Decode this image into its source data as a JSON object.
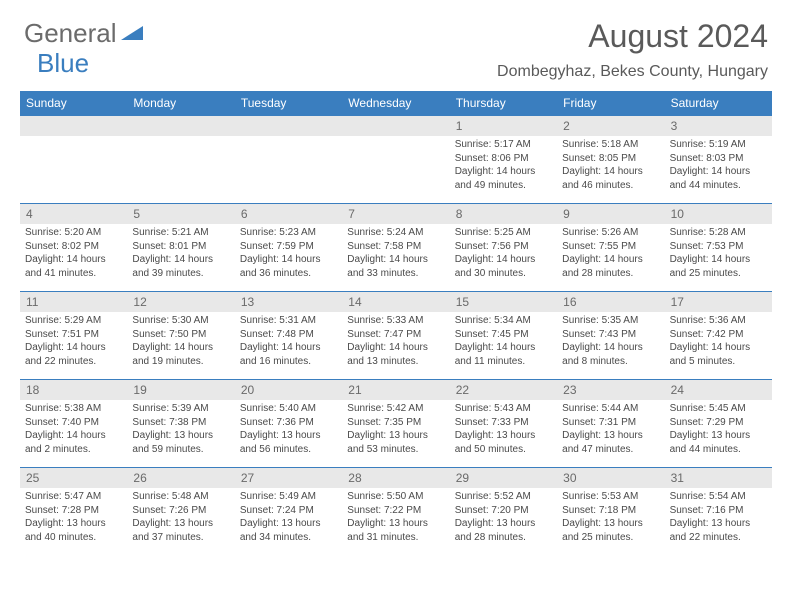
{
  "logo_text_1": "General",
  "logo_text_2": "Blue",
  "month_title": "August 2024",
  "location": "Dombegyhaz, Bekes County, Hungary",
  "colors": {
    "header_bg": "#3a7ebf",
    "daynum_bg": "#e8e8e8",
    "text": "#5a5a5a",
    "border": "#3a7ebf"
  },
  "weekdays": [
    "Sunday",
    "Monday",
    "Tuesday",
    "Wednesday",
    "Thursday",
    "Friday",
    "Saturday"
  ],
  "weeks": [
    [
      null,
      null,
      null,
      null,
      {
        "n": "1",
        "sr": "5:17 AM",
        "ss": "8:06 PM",
        "dl": "14 hours and 49 minutes."
      },
      {
        "n": "2",
        "sr": "5:18 AM",
        "ss": "8:05 PM",
        "dl": "14 hours and 46 minutes."
      },
      {
        "n": "3",
        "sr": "5:19 AM",
        "ss": "8:03 PM",
        "dl": "14 hours and 44 minutes."
      }
    ],
    [
      {
        "n": "4",
        "sr": "5:20 AM",
        "ss": "8:02 PM",
        "dl": "14 hours and 41 minutes."
      },
      {
        "n": "5",
        "sr": "5:21 AM",
        "ss": "8:01 PM",
        "dl": "14 hours and 39 minutes."
      },
      {
        "n": "6",
        "sr": "5:23 AM",
        "ss": "7:59 PM",
        "dl": "14 hours and 36 minutes."
      },
      {
        "n": "7",
        "sr": "5:24 AM",
        "ss": "7:58 PM",
        "dl": "14 hours and 33 minutes."
      },
      {
        "n": "8",
        "sr": "5:25 AM",
        "ss": "7:56 PM",
        "dl": "14 hours and 30 minutes."
      },
      {
        "n": "9",
        "sr": "5:26 AM",
        "ss": "7:55 PM",
        "dl": "14 hours and 28 minutes."
      },
      {
        "n": "10",
        "sr": "5:28 AM",
        "ss": "7:53 PM",
        "dl": "14 hours and 25 minutes."
      }
    ],
    [
      {
        "n": "11",
        "sr": "5:29 AM",
        "ss": "7:51 PM",
        "dl": "14 hours and 22 minutes."
      },
      {
        "n": "12",
        "sr": "5:30 AM",
        "ss": "7:50 PM",
        "dl": "14 hours and 19 minutes."
      },
      {
        "n": "13",
        "sr": "5:31 AM",
        "ss": "7:48 PM",
        "dl": "14 hours and 16 minutes."
      },
      {
        "n": "14",
        "sr": "5:33 AM",
        "ss": "7:47 PM",
        "dl": "14 hours and 13 minutes."
      },
      {
        "n": "15",
        "sr": "5:34 AM",
        "ss": "7:45 PM",
        "dl": "14 hours and 11 minutes."
      },
      {
        "n": "16",
        "sr": "5:35 AM",
        "ss": "7:43 PM",
        "dl": "14 hours and 8 minutes."
      },
      {
        "n": "17",
        "sr": "5:36 AM",
        "ss": "7:42 PM",
        "dl": "14 hours and 5 minutes."
      }
    ],
    [
      {
        "n": "18",
        "sr": "5:38 AM",
        "ss": "7:40 PM",
        "dl": "14 hours and 2 minutes."
      },
      {
        "n": "19",
        "sr": "5:39 AM",
        "ss": "7:38 PM",
        "dl": "13 hours and 59 minutes."
      },
      {
        "n": "20",
        "sr": "5:40 AM",
        "ss": "7:36 PM",
        "dl": "13 hours and 56 minutes."
      },
      {
        "n": "21",
        "sr": "5:42 AM",
        "ss": "7:35 PM",
        "dl": "13 hours and 53 minutes."
      },
      {
        "n": "22",
        "sr": "5:43 AM",
        "ss": "7:33 PM",
        "dl": "13 hours and 50 minutes."
      },
      {
        "n": "23",
        "sr": "5:44 AM",
        "ss": "7:31 PM",
        "dl": "13 hours and 47 minutes."
      },
      {
        "n": "24",
        "sr": "5:45 AM",
        "ss": "7:29 PM",
        "dl": "13 hours and 44 minutes."
      }
    ],
    [
      {
        "n": "25",
        "sr": "5:47 AM",
        "ss": "7:28 PM",
        "dl": "13 hours and 40 minutes."
      },
      {
        "n": "26",
        "sr": "5:48 AM",
        "ss": "7:26 PM",
        "dl": "13 hours and 37 minutes."
      },
      {
        "n": "27",
        "sr": "5:49 AM",
        "ss": "7:24 PM",
        "dl": "13 hours and 34 minutes."
      },
      {
        "n": "28",
        "sr": "5:50 AM",
        "ss": "7:22 PM",
        "dl": "13 hours and 31 minutes."
      },
      {
        "n": "29",
        "sr": "5:52 AM",
        "ss": "7:20 PM",
        "dl": "13 hours and 28 minutes."
      },
      {
        "n": "30",
        "sr": "5:53 AM",
        "ss": "7:18 PM",
        "dl": "13 hours and 25 minutes."
      },
      {
        "n": "31",
        "sr": "5:54 AM",
        "ss": "7:16 PM",
        "dl": "13 hours and 22 minutes."
      }
    ]
  ],
  "labels": {
    "sunrise": "Sunrise: ",
    "sunset": "Sunset: ",
    "daylight": "Daylight: "
  }
}
